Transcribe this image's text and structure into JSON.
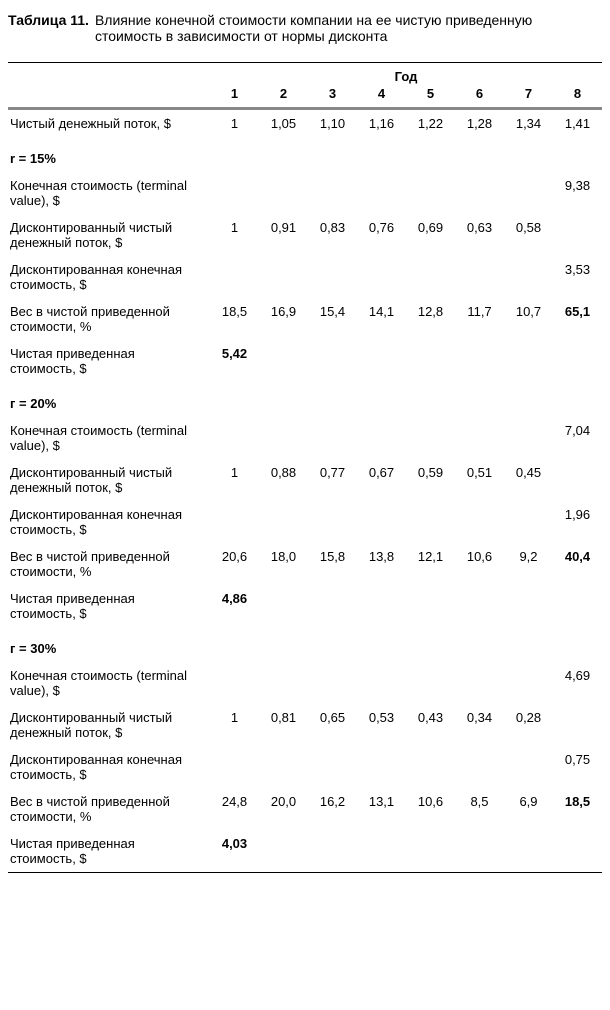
{
  "title_label": "Таблица 11.",
  "title_text": "Влияние конечной стоимости компании на ее чистую приведенную стоимость в зависимости от нормы дисконта",
  "year_header": "Год",
  "columns": [
    "1",
    "2",
    "3",
    "4",
    "5",
    "6",
    "7",
    "8"
  ],
  "row_ncf_label": "Чистый денежный поток, $",
  "row_ncf": [
    "1",
    "1,05",
    "1,10",
    "1,16",
    "1,22",
    "1,28",
    "1,34",
    "1,41"
  ],
  "s1_header": "r = 15%",
  "s1_tv_label": "Конечная стоимость (terminal value), $",
  "s1_tv": [
    "",
    "",
    "",
    "",
    "",
    "",
    "",
    "9,38"
  ],
  "s1_dcf_label": "Дисконтированный чистый денежный поток, $",
  "s1_dcf": [
    "1",
    "0,91",
    "0,83",
    "0,76",
    "0,69",
    "0,63",
    "0,58",
    ""
  ],
  "s1_dtv_label": "Дисконтированная конечная стоимость, $",
  "s1_dtv": [
    "",
    "",
    "",
    "",
    "",
    "",
    "",
    "3,53"
  ],
  "s1_w_label": "Вес в чистой приведенной стоимости, %",
  "s1_w": [
    "18,5",
    "16,9",
    "15,4",
    "14,1",
    "12,8",
    "11,7",
    "10,7",
    "65,1"
  ],
  "s1_npv_label": "Чистая приведенная стоимость, $",
  "s1_npv": [
    "5,42",
    "",
    "",
    "",
    "",
    "",
    "",
    ""
  ],
  "s2_header": "г = 20%",
  "s2_tv_label": "Конечная стоимость (terminal value), $",
  "s2_tv": [
    "",
    "",
    "",
    "",
    "",
    "",
    "",
    "7,04"
  ],
  "s2_dcf_label": "Дисконтированный чистый денежный поток, $",
  "s2_dcf": [
    "1",
    "0,88",
    "0,77",
    "0,67",
    "0,59",
    "0,51",
    "0,45",
    ""
  ],
  "s2_dtv_label": "Дисконтированная конечная стоимость, $",
  "s2_dtv": [
    "",
    "",
    "",
    "",
    "",
    "",
    "",
    "1,96"
  ],
  "s2_w_label": "Вес в чистой приведенной стоимости, %",
  "s2_w": [
    "20,6",
    "18,0",
    "15,8",
    "13,8",
    "12,1",
    "10,6",
    "9,2",
    "40,4"
  ],
  "s2_npv_label": "Чистая приведенная стоимость, $",
  "s2_npv": [
    "4,86",
    "",
    "",
    "",
    "",
    "",
    "",
    ""
  ],
  "s3_header": "г = 30%",
  "s3_tv_label": "Конечная стоимость (terminal value), $",
  "s3_tv": [
    "",
    "",
    "",
    "",
    "",
    "",
    "",
    "4,69"
  ],
  "s3_dcf_label": "Дисконтированный чистый денежный поток, $",
  "s3_dcf": [
    "1",
    "0,81",
    "0,65",
    "0,53",
    "0,43",
    "0,34",
    "0,28",
    ""
  ],
  "s3_dtv_label": "Дисконтированная конечная стоимость, $",
  "s3_dtv": [
    "",
    "",
    "",
    "",
    "",
    "",
    "",
    "0,75"
  ],
  "s3_w_label": "Вес в чистой приведенной стоимости, %",
  "s3_w": [
    "24,8",
    "20,0",
    "16,2",
    "13,1",
    "10,6",
    "8,5",
    "6,9",
    "18,5"
  ],
  "s3_npv_label": "Чистая приведенная стоимость, $",
  "s3_npv": [
    "4,03",
    "",
    "",
    "",
    "",
    "",
    "",
    ""
  ]
}
